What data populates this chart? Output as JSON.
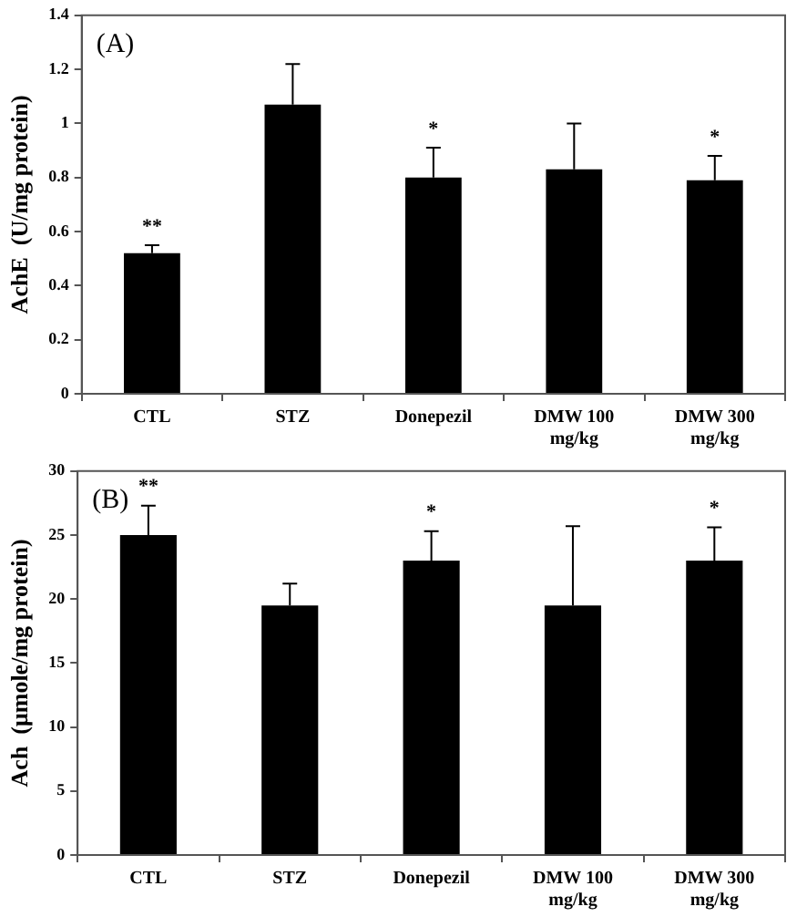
{
  "chart_data": [
    {
      "type": "bar",
      "ylabel": "AchE  (U/mg protein)",
      "categories": [
        "CTL",
        "STZ",
        "Donepezil",
        "DMW 100\nmg/kg",
        "DMW 300\nmg/kg"
      ],
      "values": [
        0.52,
        1.07,
        0.8,
        0.83,
        0.79
      ],
      "color": "#000000",
      "errors": [
        [
          0.52,
          0.55
        ],
        [
          1.07,
          1.22
        ],
        [
          0.8,
          0.91
        ],
        [
          0.83,
          1.0
        ],
        [
          0.79,
          0.88
        ]
      ],
      "ylim": [
        0,
        1.4
      ],
      "yticks": [
        0,
        0.2,
        0.4,
        0.6,
        0.8,
        1,
        1.2,
        1.4
      ],
      "grid": false,
      "annotations": [
        "(A)",
        {
          "text": "**",
          "x": "CTL",
          "y": 0.55
        },
        {
          "text": "*",
          "x": "Donepezil",
          "y": 0.91
        },
        {
          "text": "*",
          "x": "DMW 300\nmg/kg",
          "y": 0.88
        }
      ]
    },
    {
      "type": "bar",
      "ylabel": "Ach  (μmole/mg protein)",
      "categories": [
        "CTL",
        "STZ",
        "Donepezil",
        "DMW 100\nmg/kg",
        "DMW 300\nmg/kg"
      ],
      "values": [
        25,
        19.5,
        23,
        19.5,
        23
      ],
      "color": "#000000",
      "errors": [
        [
          25,
          27.3
        ],
        [
          19.5,
          21.2
        ],
        [
          23,
          25.3
        ],
        [
          19.5,
          25.7
        ],
        [
          23,
          25.6
        ]
      ],
      "ylim": [
        0,
        30
      ],
      "yticks": [
        0,
        5,
        10,
        15,
        20,
        25,
        30
      ],
      "grid": false,
      "annotations": [
        "(B)",
        {
          "text": "**",
          "x": "CTL",
          "y": 27.3
        },
        {
          "text": "*",
          "x": "Donepezil",
          "y": 25.3
        },
        {
          "text": "*",
          "x": "DMW 300\nmg/kg",
          "y": 25.6
        }
      ]
    }
  ]
}
